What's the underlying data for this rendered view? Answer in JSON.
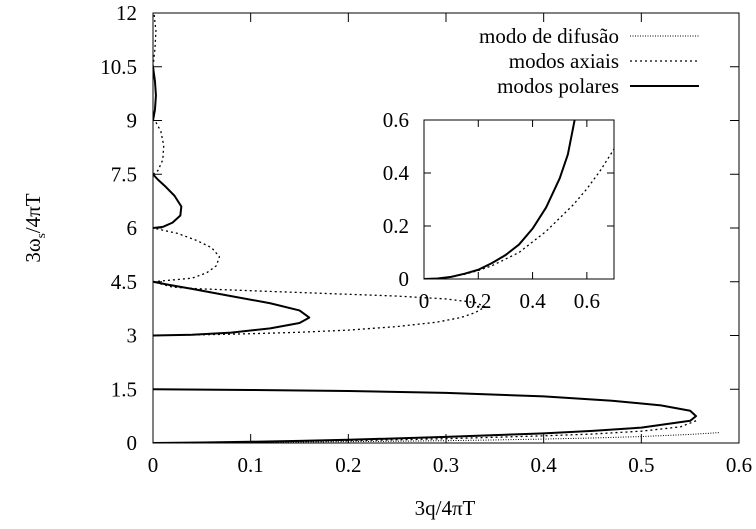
{
  "chart_data": [
    {
      "type": "line",
      "xlabel": "3q/4πT",
      "ylabel_main": "3ω",
      "ylabel_sub": "s",
      "ylabel_tail": "/4πT",
      "xlim": [
        0,
        0.6
      ],
      "ylim": [
        0,
        12
      ],
      "xticks": [
        "0",
        "0.1",
        "0.2",
        "0.3",
        "0.4",
        "0.5",
        "0.6"
      ],
      "yticks": [
        "0",
        "1.5",
        "3",
        "4.5",
        "6",
        "7.5",
        "9",
        "10.5",
        "12"
      ],
      "legend_position": "top-right",
      "series": [
        {
          "name": "modo de difusão",
          "style": "dotted-fine",
          "points": [
            [
              0,
              0
            ],
            [
              0.05,
              0.009
            ],
            [
              0.1,
              0.018
            ],
            [
              0.15,
              0.028
            ],
            [
              0.2,
              0.038
            ],
            [
              0.25,
              0.05
            ],
            [
              0.3,
              0.065
            ],
            [
              0.35,
              0.085
            ],
            [
              0.4,
              0.11
            ],
            [
              0.45,
              0.14
            ],
            [
              0.5,
              0.18
            ],
            [
              0.55,
              0.24
            ],
            [
              0.58,
              0.29
            ]
          ]
        },
        {
          "name": "modos axiais",
          "style": "dotted",
          "curves": [
            [
              [
                0.556,
                0.62
              ],
              [
                0.54,
                0.45
              ],
              [
                0.5,
                0.33
              ],
              [
                0.45,
                0.25
              ],
              [
                0.4,
                0.2
              ],
              [
                0.35,
                0.16
              ],
              [
                0.3,
                0.12
              ],
              [
                0.25,
                0.09
              ],
              [
                0.2,
                0.065
              ],
              [
                0.15,
                0.045
              ],
              [
                0.1,
                0.028
              ],
              [
                0.05,
                0.012
              ],
              [
                0,
                0
              ]
            ],
            [
              [
                0,
                3.0
              ],
              [
                0.05,
                3.02
              ],
              [
                0.1,
                3.05
              ],
              [
                0.15,
                3.09
              ],
              [
                0.2,
                3.15
              ],
              [
                0.25,
                3.25
              ],
              [
                0.29,
                3.37
              ],
              [
                0.315,
                3.5
              ],
              [
                0.33,
                3.64
              ],
              [
                0.34,
                3.8
              ],
              [
                0.33,
                3.92
              ],
              [
                0.3,
                4.02
              ],
              [
                0.25,
                4.1
              ],
              [
                0.2,
                4.15
              ],
              [
                0.15,
                4.2
              ],
              [
                0.1,
                4.25
              ],
              [
                0.05,
                4.3
              ],
              [
                0.02,
                4.35
              ],
              [
                0,
                4.5
              ]
            ],
            [
              [
                0,
                4.5
              ],
              [
                0.02,
                4.55
              ],
              [
                0.04,
                4.6
              ],
              [
                0.055,
                4.75
              ],
              [
                0.065,
                4.95
              ],
              [
                0.068,
                5.2
              ],
              [
                0.06,
                5.45
              ],
              [
                0.045,
                5.65
              ],
              [
                0.025,
                5.85
              ],
              [
                0,
                6.0
              ]
            ],
            [
              [
                0,
                7.5
              ],
              [
                0.005,
                7.6
              ],
              [
                0.01,
                7.9
              ],
              [
                0.011,
                8.3
              ],
              [
                0.008,
                8.7
              ],
              [
                0.003,
                8.95
              ],
              [
                0,
                9.0
              ]
            ],
            [
              [
                0,
                10.5
              ],
              [
                0.002,
                11.0
              ],
              [
                0.003,
                11.5
              ],
              [
                0.001,
                12
              ]
            ]
          ]
        },
        {
          "name": "modos polares",
          "style": "solid",
          "curves": [
            [
              [
                0,
                1.5
              ],
              [
                0.1,
                1.48
              ],
              [
                0.2,
                1.45
              ],
              [
                0.3,
                1.4
              ],
              [
                0.4,
                1.3
              ],
              [
                0.47,
                1.18
              ],
              [
                0.52,
                1.05
              ],
              [
                0.55,
                0.9
              ],
              [
                0.556,
                0.75
              ],
              [
                0.55,
                0.62
              ],
              [
                0.5,
                0.43
              ],
              [
                0.45,
                0.34
              ],
              [
                0.4,
                0.27
              ],
              [
                0.35,
                0.22
              ],
              [
                0.3,
                0.17
              ],
              [
                0.25,
                0.13
              ],
              [
                0.2,
                0.09
              ],
              [
                0.15,
                0.06
              ],
              [
                0.1,
                0.035
              ],
              [
                0.05,
                0.015
              ],
              [
                0,
                0
              ]
            ],
            [
              [
                0,
                3.0
              ],
              [
                0.04,
                3.02
              ],
              [
                0.08,
                3.08
              ],
              [
                0.12,
                3.2
              ],
              [
                0.15,
                3.35
              ],
              [
                0.16,
                3.5
              ],
              [
                0.15,
                3.7
              ],
              [
                0.12,
                3.9
              ],
              [
                0.08,
                4.1
              ],
              [
                0.04,
                4.3
              ],
              [
                0.015,
                4.42
              ],
              [
                0,
                4.5
              ]
            ],
            [
              [
                0,
                6.0
              ],
              [
                0.01,
                6.03
              ],
              [
                0.02,
                6.15
              ],
              [
                0.028,
                6.35
              ],
              [
                0.029,
                6.6
              ],
              [
                0.022,
                6.9
              ],
              [
                0.013,
                7.15
              ],
              [
                0.005,
                7.35
              ],
              [
                0,
                7.5
              ]
            ],
            [
              [
                0,
                9.0
              ],
              [
                0.002,
                9.3
              ],
              [
                0.003,
                9.7
              ],
              [
                0.002,
                10.1
              ],
              [
                0,
                10.5
              ]
            ]
          ]
        }
      ]
    },
    {
      "type": "line",
      "xlim": [
        0,
        0.7
      ],
      "ylim": [
        0,
        0.6
      ],
      "xticks": [
        "0",
        "0.2",
        "0.4",
        "0.6"
      ],
      "yticks": [
        "0",
        "0.2",
        "0.4",
        "0.6"
      ],
      "series": [
        {
          "style": "solid",
          "points": [
            [
              0,
              0
            ],
            [
              0.05,
              0.002
            ],
            [
              0.1,
              0.008
            ],
            [
              0.15,
              0.02
            ],
            [
              0.2,
              0.035
            ],
            [
              0.25,
              0.06
            ],
            [
              0.3,
              0.09
            ],
            [
              0.35,
              0.13
            ],
            [
              0.4,
              0.19
            ],
            [
              0.45,
              0.27
            ],
            [
              0.5,
              0.38
            ],
            [
              0.53,
              0.47
            ],
            [
              0.555,
              0.6
            ]
          ]
        },
        {
          "style": "dotted",
          "points": [
            [
              0,
              0
            ],
            [
              0.05,
              0.002
            ],
            [
              0.1,
              0.008
            ],
            [
              0.15,
              0.018
            ],
            [
              0.2,
              0.032
            ],
            [
              0.25,
              0.05
            ],
            [
              0.3,
              0.075
            ],
            [
              0.35,
              0.1
            ],
            [
              0.4,
              0.14
            ],
            [
              0.45,
              0.18
            ],
            [
              0.5,
              0.23
            ],
            [
              0.55,
              0.28
            ],
            [
              0.6,
              0.34
            ],
            [
              0.65,
              0.41
            ],
            [
              0.7,
              0.49
            ]
          ]
        }
      ]
    }
  ]
}
